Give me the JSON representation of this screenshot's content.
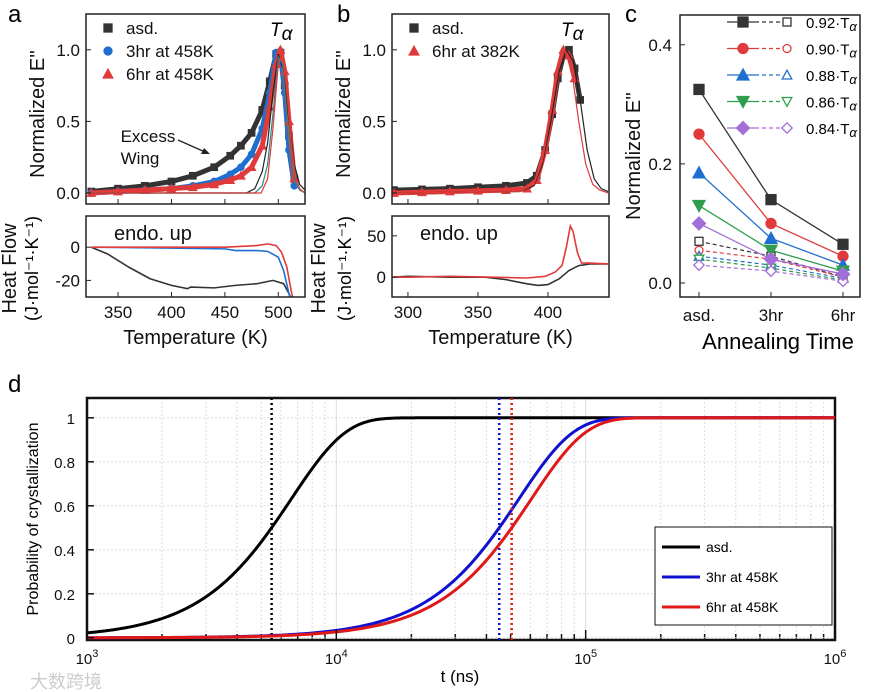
{
  "panel_letters": {
    "a": "a",
    "b": "b",
    "c": "c",
    "d": "d"
  },
  "watermark": "大数跨境",
  "chart_data": [
    {
      "id": "a_top",
      "type": "scatter",
      "ylabel": "Normalized E''",
      "xlim": [
        320,
        525
      ],
      "ylim": [
        -0.077,
        1.25
      ],
      "yticks": [
        "0.0",
        "0.5",
        "1.0"
      ],
      "ytick_values": [
        0,
        0.5,
        1.0
      ],
      "xtick_values": [
        350,
        400,
        450,
        500
      ],
      "annotation_peak": "T",
      "annotation_peak_sub": "α",
      "annotation_wing": [
        "Excess",
        "Wing"
      ],
      "legend_placement": "top-left",
      "series": [
        {
          "name": "asd.",
          "color": "#333333",
          "marker": "square",
          "x": [
            325,
            350,
            375,
            400,
            420,
            440,
            455,
            465,
            475,
            485,
            492,
            498,
            502,
            506,
            510,
            515
          ],
          "y": [
            0.01,
            0.03,
            0.05,
            0.08,
            0.12,
            0.18,
            0.26,
            0.33,
            0.42,
            0.58,
            0.78,
            0.97,
            0.98,
            0.75,
            0.4,
            0.1
          ]
        },
        {
          "name": "3hr at 458K",
          "color": "#1f6fd0",
          "marker": "circle",
          "x": [
            325,
            350,
            375,
            400,
            420,
            440,
            455,
            465,
            475,
            485,
            492,
            498,
            502,
            506,
            510,
            515
          ],
          "y": [
            0.0,
            0.01,
            0.02,
            0.03,
            0.05,
            0.08,
            0.13,
            0.18,
            0.27,
            0.45,
            0.7,
            0.98,
            0.97,
            0.7,
            0.3,
            0.05
          ]
        },
        {
          "name": "6hr at 458K",
          "color": "#e03a3a",
          "marker": "triangle",
          "x": [
            325,
            350,
            375,
            400,
            420,
            440,
            455,
            465,
            475,
            485,
            492,
            498,
            502,
            506,
            510,
            515
          ],
          "y": [
            0.0,
            0.01,
            0.02,
            0.03,
            0.04,
            0.06,
            0.09,
            0.12,
            0.18,
            0.33,
            0.6,
            0.9,
            1.0,
            0.85,
            0.5,
            0.1
          ]
        }
      ],
      "fits": [
        {
          "color": "#222222",
          "x": [
            320,
            470,
            478,
            485,
            490,
            495,
            500,
            505,
            510,
            515,
            520,
            525
          ],
          "y": [
            0,
            0,
            0.03,
            0.15,
            0.35,
            0.7,
            0.97,
            0.85,
            0.5,
            0.2,
            0.06,
            0.02
          ]
        },
        {
          "color": "#2a8a8a",
          "x": [
            320,
            478,
            485,
            490,
            495,
            500,
            504,
            508,
            512,
            516,
            520,
            525
          ],
          "y": [
            0,
            0,
            0.05,
            0.2,
            0.55,
            0.95,
            0.9,
            0.55,
            0.25,
            0.07,
            0.02,
            0
          ]
        },
        {
          "color": "#e03a3a",
          "x": [
            320,
            484,
            490,
            495,
            500,
            504,
            508,
            512,
            516,
            520,
            525
          ],
          "y": [
            0,
            0,
            0.1,
            0.45,
            0.9,
            0.98,
            0.7,
            0.35,
            0.12,
            0.03,
            0
          ]
        }
      ]
    },
    {
      "id": "a_bottom",
      "type": "line",
      "xlabel": "Temperature (K)",
      "ylabel": [
        "Heat Flow",
        "(J·mol⁻¹·K⁻¹)"
      ],
      "xlim": [
        320,
        525
      ],
      "ylim": [
        -30,
        18.8
      ],
      "xticks": [
        "350",
        "400",
        "450",
        "500"
      ],
      "xtick_values": [
        350,
        400,
        450,
        500
      ],
      "yticks": [
        "0",
        "-20"
      ],
      "ytick_values": [
        0,
        -20
      ],
      "annotation": "endo. up",
      "series": [
        {
          "name": "asd.",
          "color": "#333333",
          "x": [
            325,
            340,
            360,
            380,
            400,
            415,
            418,
            440,
            460,
            480,
            495,
            505,
            510,
            513
          ],
          "y": [
            0,
            -4,
            -12,
            -19,
            -23,
            -25,
            -24,
            -24.5,
            -23,
            -22,
            -20,
            -22,
            -28,
            -32
          ]
        },
        {
          "name": "3hr at 458K",
          "color": "#1f6fd0",
          "x": [
            325,
            400,
            450,
            460,
            480,
            490,
            500,
            505,
            510,
            512
          ],
          "y": [
            0,
            -0.5,
            -1,
            -2,
            -2,
            -2.5,
            -6,
            -14,
            -28,
            -32
          ]
        },
        {
          "name": "6hr at 458K",
          "color": "#e03a3a",
          "x": [
            325,
            400,
            450,
            480,
            490,
            498,
            503,
            508,
            512,
            514
          ],
          "y": [
            0,
            0,
            0,
            1,
            2,
            1,
            -3,
            -12,
            -26,
            -32
          ]
        }
      ]
    },
    {
      "id": "b_top",
      "type": "scatter",
      "ylabel": "Normalized E''",
      "xlim": [
        288.6,
        443.6
      ],
      "ylim": [
        -0.077,
        1.25
      ],
      "yticks": [
        "0.0",
        "0.5",
        "1.0"
      ],
      "ytick_values": [
        0,
        0.5,
        1.0
      ],
      "xtick_values": [
        300,
        350,
        400
      ],
      "annotation_peak": "T",
      "annotation_peak_sub": "α",
      "legend_placement": "top-left",
      "series": [
        {
          "name": "asd.",
          "color": "#333333",
          "marker": "square",
          "x": [
            290,
            310,
            330,
            350,
            370,
            385,
            392,
            398,
            403,
            407,
            411,
            415,
            419,
            423
          ],
          "y": [
            0.02,
            0.025,
            0.03,
            0.04,
            0.05,
            0.07,
            0.12,
            0.3,
            0.55,
            0.8,
            0.96,
            1.0,
            0.87,
            0.65
          ]
        },
        {
          "name": "6hr at 382K",
          "color": "#e03a3a",
          "marker": "triangle",
          "x": [
            290,
            310,
            330,
            350,
            370,
            385,
            392,
            398,
            403,
            407,
            411,
            415,
            419
          ],
          "y": [
            0.0,
            0.005,
            0.01,
            0.015,
            0.02,
            0.03,
            0.09,
            0.3,
            0.58,
            0.85,
            1.0,
            0.96,
            0.8
          ]
        }
      ],
      "fits": [
        {
          "color": "#222222",
          "x": [
            288,
            380,
            390,
            396,
            402,
            408,
            413,
            418,
            423,
            428,
            433,
            438,
            443
          ],
          "y": [
            0,
            0.01,
            0.05,
            0.2,
            0.5,
            0.85,
            1.0,
            0.92,
            0.65,
            0.3,
            0.1,
            0.03,
            0.01
          ]
        },
        {
          "color": "#e03a3a",
          "x": [
            288,
            380,
            390,
            396,
            402,
            408,
            412,
            417,
            422,
            427,
            432,
            437,
            443
          ],
          "y": [
            0,
            0.01,
            0.06,
            0.22,
            0.55,
            0.9,
            1.0,
            0.85,
            0.5,
            0.2,
            0.06,
            0.02,
            0
          ]
        }
      ]
    },
    {
      "id": "b_bottom",
      "type": "line",
      "xlabel": "Temperature (K)",
      "ylabel": [
        "Heat Flow",
        "(J·mol⁻¹·K⁻¹)"
      ],
      "xlim": [
        288.6,
        443.6
      ],
      "ylim": [
        -24,
        74
      ],
      "xticks": [
        "300",
        "350",
        "400"
      ],
      "xtick_values": [
        300,
        350,
        400
      ],
      "yticks": [
        "0",
        "50"
      ],
      "ytick_values": [
        0,
        50
      ],
      "annotation": "endo. up",
      "series": [
        {
          "name": "asd.",
          "color": "#333333",
          "x": [
            288,
            300,
            330,
            355,
            370,
            385,
            393,
            400,
            408,
            415,
            422,
            430,
            443
          ],
          "y": [
            0,
            1,
            0,
            0,
            -3,
            -8,
            -10,
            -9,
            -2,
            8,
            14,
            16,
            16
          ]
        },
        {
          "name": "6hr at 382K",
          "color": "#e03a3a",
          "x": [
            288,
            300,
            330,
            360,
            385,
            398,
            405,
            410,
            413,
            416,
            418,
            421,
            424,
            430,
            443
          ],
          "y": [
            0,
            0,
            1,
            0,
            -1,
            1,
            6,
            14,
            35,
            62,
            55,
            30,
            17,
            17,
            16
          ]
        }
      ]
    },
    {
      "id": "c",
      "type": "line",
      "xlabel": "Annealing Time",
      "ylabel": "Normalized E''",
      "categories": [
        "asd.",
        "3hr",
        "6hr"
      ],
      "ylim": [
        -0.0235,
        0.45
      ],
      "yticks": [
        "0.0",
        "0.2",
        "0.4"
      ],
      "ytick_values": [
        0,
        0.2,
        0.4
      ],
      "legend_placement": "top-right",
      "series": [
        {
          "name": "0.92·T",
          "sub": "α",
          "color": "#333333",
          "marker": "square",
          "closed": [
            0.325,
            0.14,
            0.065
          ],
          "open": [
            0.07,
            0.045,
            0.01
          ]
        },
        {
          "name": "0.90·T",
          "sub": "α",
          "color": "#e03a3a",
          "marker": "circle",
          "closed": [
            0.25,
            0.1,
            0.045
          ],
          "open": [
            0.055,
            0.04,
            0.01
          ]
        },
        {
          "name": "0.88·T",
          "sub": "α",
          "color": "#1f6fd0",
          "marker": "triangle",
          "closed": [
            0.185,
            0.075,
            0.03
          ],
          "open": [
            0.045,
            0.03,
            0.008
          ]
        },
        {
          "name": "0.86·T",
          "sub": "α",
          "color": "#2e9e4e",
          "marker": "triangle-down",
          "closed": [
            0.13,
            0.055,
            0.02
          ],
          "open": [
            0.04,
            0.025,
            0.005
          ]
        },
        {
          "name": "0.84·T",
          "sub": "α",
          "color": "#a46ed8",
          "marker": "diamond",
          "closed": [
            0.1,
            0.04,
            0.015
          ],
          "open": [
            0.03,
            0.02,
            0.003
          ]
        }
      ]
    },
    {
      "id": "d",
      "type": "line",
      "xlabel": "t (ns)",
      "ylabel": "Probability of crystallization",
      "xscale": "log",
      "xlim": [
        1000,
        1000000
      ],
      "ylim": [
        0,
        1.05
      ],
      "xticks": [
        {
          "base": "10",
          "exp": "3"
        },
        {
          "base": "10",
          "exp": "4"
        },
        {
          "base": "10",
          "exp": "5"
        },
        {
          "base": "10",
          "exp": "6"
        }
      ],
      "xtick_values": [
        1000,
        10000,
        100000,
        1000000
      ],
      "yticks": [
        "0",
        "0.2",
        "0.4",
        "0.6",
        "0.8",
        "1"
      ],
      "ytick_values": [
        0,
        0.2,
        0.4,
        0.6,
        0.8,
        1
      ],
      "grid": true,
      "legend_placement": "bottom-right",
      "series": [
        {
          "name": "asd.",
          "color": "#000000",
          "t50": 5500,
          "avrami_n": 2.0
        },
        {
          "name": "3hr at 458K",
          "color": "#1010d0",
          "t50": 45000,
          "avrami_n": 2.0
        },
        {
          "name": "6hr at 458K",
          "color": "#e01818",
          "t50": 50500,
          "avrami_n": 2.0
        }
      ]
    }
  ]
}
